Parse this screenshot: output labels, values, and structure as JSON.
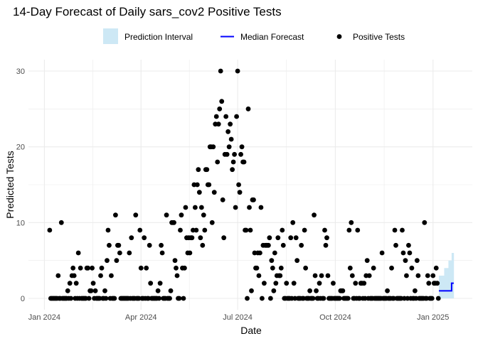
{
  "chart_data": {
    "type": "scatter",
    "title": "14-Day Forecast of Daily sars_cov2 Positive Tests",
    "xlabel": "Date",
    "ylabel": "Predicted Tests",
    "xlim": [
      "2023-12-17",
      "2025-02-07"
    ],
    "ylim": [
      -1.5,
      31.5
    ],
    "x_ticks": [
      {
        "date": "2024-01-01",
        "label": "Jan 2024"
      },
      {
        "date": "2024-04-01",
        "label": "Apr 2024"
      },
      {
        "date": "2024-07-01",
        "label": "Jul 2024"
      },
      {
        "date": "2024-10-01",
        "label": "Oct 2024"
      },
      {
        "date": "2025-01-01",
        "label": "Jan 2025"
      }
    ],
    "y_ticks": [
      0,
      10,
      20,
      30
    ],
    "grid": true,
    "legend": {
      "position": "top",
      "items": [
        {
          "label": "Prediction Interval",
          "kind": "ribbon"
        },
        {
          "label": "Median Forecast",
          "kind": "line"
        },
        {
          "label": "Positive Tests",
          "kind": "point"
        }
      ]
    },
    "colors": {
      "points": "#000000",
      "median": "#0000ff",
      "interval": "#cde8f5",
      "grid": "#ebebeb"
    },
    "observed_daily_by_month": {
      "2024-01": [
        null,
        null,
        null,
        null,
        null,
        9,
        0,
        0,
        0,
        0,
        0,
        0,
        0,
        3,
        0,
        0,
        10,
        0,
        0,
        0,
        0,
        0,
        1,
        0,
        2,
        0,
        3,
        4,
        3,
        0,
        2
      ],
      "2024-02": [
        0,
        6,
        0,
        4,
        0,
        0,
        0,
        0,
        0,
        4,
        4,
        0,
        1,
        1,
        4,
        2,
        0,
        1,
        0,
        0,
        0,
        0,
        3,
        4,
        0,
        0,
        1,
        0,
        5
      ],
      "2024-03": [
        9,
        7,
        0,
        3,
        0,
        0,
        0,
        11,
        5,
        7,
        7,
        6,
        0,
        0,
        0,
        0,
        0,
        0,
        0,
        0,
        6,
        0,
        8,
        0,
        0,
        0,
        11,
        0,
        0,
        0,
        9
      ],
      "2024-04": [
        4,
        0,
        0,
        8,
        0,
        4,
        0,
        0,
        7,
        2,
        0,
        0,
        0,
        0,
        0,
        0,
        1,
        0,
        2,
        7,
        6,
        0,
        0,
        0,
        11,
        0,
        0,
        0,
        1,
        10
      ],
      "2024-05": [
        10,
        10,
        5,
        4,
        3,
        0,
        0,
        9,
        11,
        4,
        0,
        4,
        12,
        8,
        6,
        8,
        6,
        8,
        8,
        9,
        15,
        12,
        9,
        15,
        17,
        14,
        8,
        12,
        7,
        11,
        9
      ],
      "2024-06": [
        17,
        17,
        15,
        15,
        20,
        20,
        10,
        20,
        14,
        23,
        24,
        18,
        23,
        25,
        30,
        26,
        13,
        8,
        19,
        24,
        19,
        22,
        20,
        23,
        21,
        17,
        18,
        19,
        12,
        24
      ],
      "2024-07": [
        30,
        15,
        14,
        19,
        20,
        18,
        18,
        9,
        9,
        0,
        25,
        12,
        9,
        1,
        13,
        13,
        6,
        4,
        4,
        6,
        3,
        6,
        12,
        0,
        7,
        2,
        7,
        7,
        7,
        7,
        8
      ],
      "2024-08": [
        0,
        5,
        4,
        1,
        6,
        2,
        3,
        8,
        3,
        3,
        4,
        9,
        7,
        0,
        0,
        2,
        0,
        0,
        0,
        8,
        0,
        10,
        2,
        0,
        8,
        5,
        0,
        0,
        0,
        7,
        0
      ],
      "2024-09": [
        0,
        9,
        4,
        0,
        0,
        0,
        1,
        0,
        0,
        0,
        11,
        3,
        1,
        0,
        0,
        2,
        0,
        3,
        0,
        0,
        9,
        7,
        8,
        3,
        0,
        0,
        0,
        0,
        2,
        0
      ],
      "2024-10": [
        0,
        0,
        0,
        0,
        0,
        1,
        1,
        1,
        0,
        0,
        0,
        0,
        0,
        9,
        4,
        10,
        3,
        0,
        0,
        2,
        0,
        9,
        0,
        0,
        2,
        2,
        0,
        2,
        0,
        3,
        5
      ],
      "2024-11": [
        0,
        3,
        0,
        0,
        0,
        4,
        0,
        0,
        0,
        0,
        0,
        0,
        0,
        6,
        0,
        0,
        0,
        0,
        1,
        0,
        0,
        0,
        4,
        0,
        0,
        9,
        7,
        0,
        0,
        0
      ],
      "2024-12": [
        0,
        0,
        9,
        6,
        0,
        5,
        3,
        0,
        7,
        6,
        0,
        4,
        0,
        0,
        1,
        0,
        5,
        3,
        0,
        0,
        0,
        0,
        0,
        10,
        0,
        0,
        3,
        2,
        0,
        0,
        0
      ],
      "2025-01": [
        3,
        2,
        2,
        4,
        2,
        0
      ]
    },
    "forecast": {
      "dates": [
        "2025-01-07",
        "2025-01-08",
        "2025-01-09",
        "2025-01-10",
        "2025-01-11",
        "2025-01-12",
        "2025-01-13",
        "2025-01-14",
        "2025-01-15",
        "2025-01-16",
        "2025-01-17",
        "2025-01-18",
        "2025-01-19",
        "2025-01-20"
      ],
      "median": [
        1,
        1,
        1,
        1,
        1,
        1,
        1,
        1,
        1,
        1,
        1,
        1,
        2,
        2
      ],
      "lower": [
        0,
        0,
        0,
        0,
        0,
        0,
        0,
        0,
        0,
        0,
        0,
        0,
        0,
        0
      ],
      "upper": [
        3,
        3,
        3,
        3,
        3,
        4,
        4,
        4,
        4,
        5,
        5,
        5,
        6,
        6
      ]
    }
  }
}
